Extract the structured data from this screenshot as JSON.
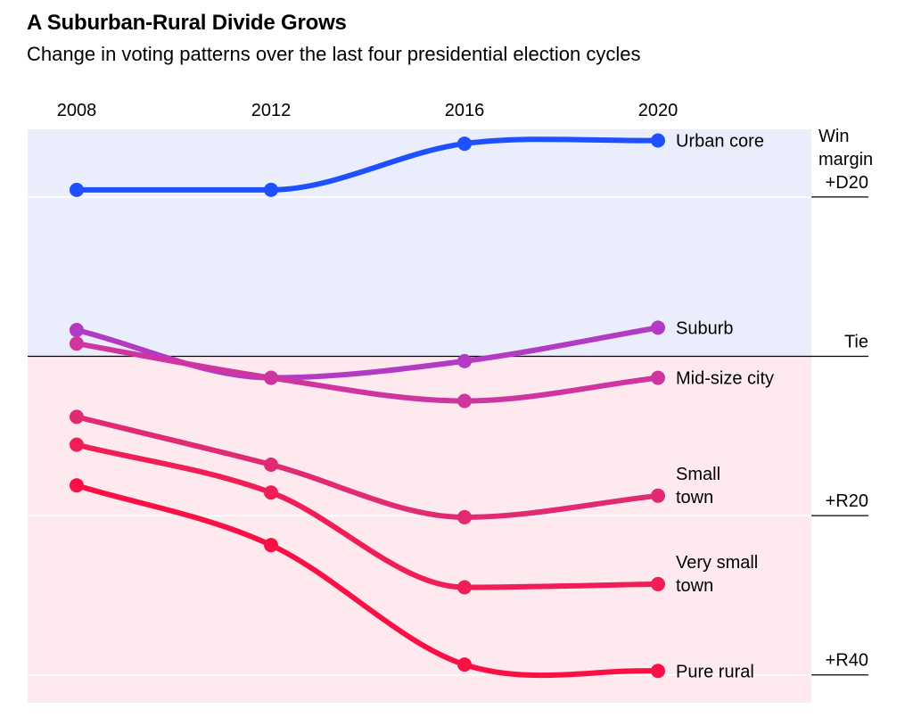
{
  "title": "A Suburban-Rural Divide Grows",
  "subtitle": "Change in voting patterns over the last four presidential election cycles",
  "colors": {
    "democratic_background": "#eaedfb",
    "republican_background": "#fde9ee",
    "gridline": "#ffffff",
    "tie_line": "#000000"
  },
  "chart_data": {
    "type": "line",
    "x": [
      2008,
      2012,
      2016,
      2020
    ],
    "y_axis": {
      "name_lines": [
        "Win",
        "margin"
      ],
      "range_note": "positive = Democratic win margin, negative = Republican win margin",
      "ylim": [
        -43.5,
        28.5
      ],
      "ticks": [
        {
          "value": 20,
          "label": "+D20"
        },
        {
          "value": 0,
          "label": "Tie"
        },
        {
          "value": -20,
          "label": "+R20"
        },
        {
          "value": -40,
          "label": "+R40"
        }
      ]
    },
    "grid": true,
    "legend": "direct labels at line ends",
    "series": [
      {
        "name": "Urban core",
        "label_lines": [
          "Urban core"
        ],
        "color": "#1f50ff",
        "values": [
          20.9,
          20.9,
          26.7,
          27.1
        ]
      },
      {
        "name": "Suburb",
        "label_lines": [
          "Suburb"
        ],
        "color": "#b33bc4",
        "values": [
          3.3,
          -2.7,
          -0.6,
          3.6
        ]
      },
      {
        "name": "Mid-size city",
        "label_lines": [
          "Mid-size city"
        ],
        "color": "#cf359f",
        "values": [
          1.6,
          -2.7,
          -5.6,
          -2.7
        ]
      },
      {
        "name": "Small town",
        "label_lines": [
          "Small",
          "town"
        ],
        "color": "#e02a72",
        "values": [
          -7.6,
          -13.6,
          -20.2,
          -17.5
        ]
      },
      {
        "name": "Very small town",
        "label_lines": [
          "Very small",
          "town"
        ],
        "color": "#f01d57",
        "values": [
          -11.1,
          -17.1,
          -29.0,
          -28.6
        ]
      },
      {
        "name": "Pure rural",
        "label_lines": [
          "Pure rural"
        ],
        "color": "#fb1046",
        "values": [
          -16.2,
          -23.7,
          -38.7,
          -39.5
        ]
      }
    ]
  }
}
